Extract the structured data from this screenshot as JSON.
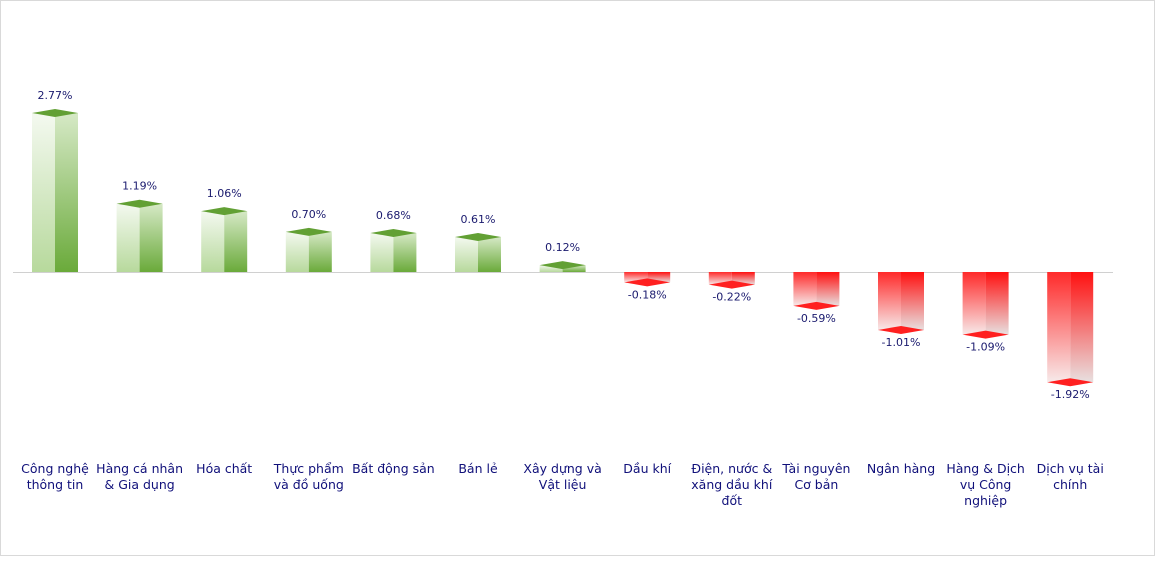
{
  "chart_data": {
    "type": "bar",
    "title": "",
    "xlabel": "",
    "ylabel": "",
    "ylim": [
      -1.92,
      2.77
    ],
    "grid": false,
    "legend": "none",
    "categories": [
      [
        "Công nghệ",
        "thông tin"
      ],
      [
        "Hàng cá nhân",
        "& Gia dụng"
      ],
      [
        "Hóa chất"
      ],
      [
        "Thực phẩm",
        "và đồ uống"
      ],
      [
        "Bất động sản"
      ],
      [
        "Bán lẻ"
      ],
      [
        "Xây dựng và",
        "Vật liệu"
      ],
      [
        "Dầu khí"
      ],
      [
        "Điện, nước &",
        "xăng dầu khí",
        "đốt"
      ],
      [
        "Tài nguyên",
        "Cơ bản"
      ],
      [
        "Ngân hàng"
      ],
      [
        "Hàng & Dịch",
        "vụ Công",
        "nghiệp"
      ],
      [
        "Dịch vụ tài",
        "chính"
      ]
    ],
    "values": [
      2.77,
      1.19,
      1.06,
      0.7,
      0.68,
      0.61,
      0.12,
      -0.18,
      -0.22,
      -0.59,
      -1.01,
      -1.09,
      -1.92
    ],
    "data_labels": [
      "2.77%",
      "1.19%",
      "1.06%",
      "0.70%",
      "0.68%",
      "0.61%",
      "0.12%",
      "-0.18%",
      "-0.22%",
      "-0.59%",
      "-1.01%",
      "-1.09%",
      "-1.92%"
    ],
    "colors": {
      "positive": "#6aaa3a",
      "negative": "#ff1a1a",
      "label": "#1a1a6e"
    }
  }
}
